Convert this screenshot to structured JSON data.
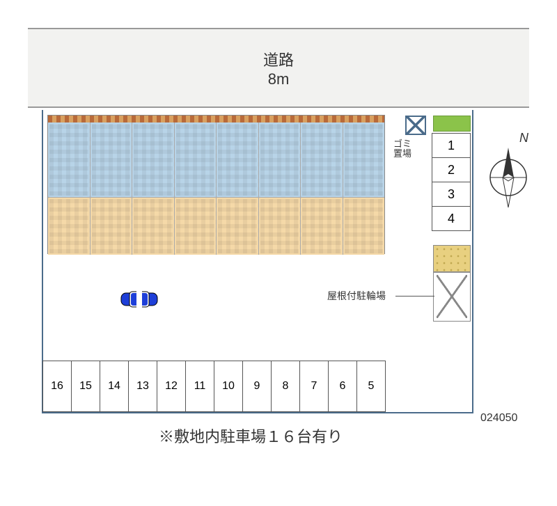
{
  "road": {
    "label": "道路",
    "width_label": "8m",
    "color": "#f2f2f0"
  },
  "site": {
    "border_color": "#4a6b8a"
  },
  "building": {
    "unit_count": 8,
    "upper_color": "#b8d4e8",
    "lower_color": "#f5d9a8",
    "brick_color": "#b86a3a"
  },
  "garbage": {
    "label": "ゴミ\n置場"
  },
  "vertical_parking": {
    "slots": [
      "1",
      "2",
      "3",
      "4"
    ]
  },
  "bike_parking": {
    "label": "屋根付駐輪場",
    "roof_color": "#e8d080"
  },
  "horizontal_parking": {
    "slots": [
      "5",
      "6",
      "7",
      "8",
      "9",
      "10",
      "11",
      "12",
      "13",
      "14",
      "15",
      "16"
    ]
  },
  "car": {
    "body_color": "#1e3fd8",
    "stripe_color": "#ffffff"
  },
  "note": "※敷地内駐車場１６台有り",
  "code": "024050",
  "compass": {
    "north_label": "N"
  },
  "colors": {
    "green": "#8bc34a",
    "line": "#555555",
    "text": "#333333"
  }
}
